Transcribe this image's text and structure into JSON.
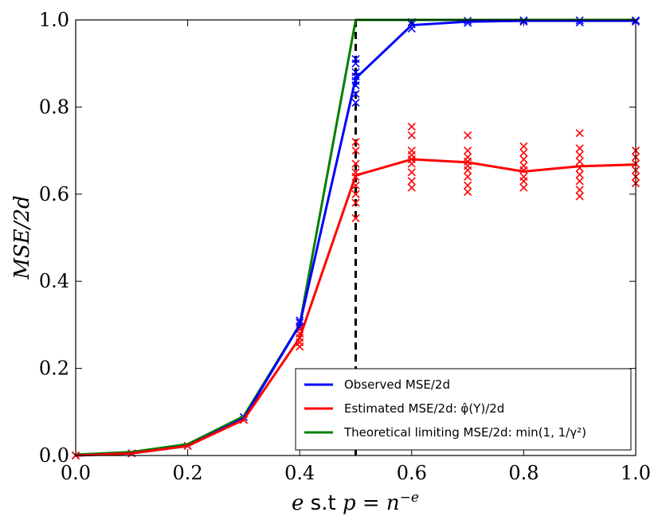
{
  "chart_data": {
    "type": "line",
    "xlabel": "e s.t p = n^{-e}",
    "ylabel": "MSE/2d",
    "xlim": [
      0.0,
      1.0
    ],
    "ylim": [
      0.0,
      1.0
    ],
    "xticks": [
      "0.0",
      "0.2",
      "0.4",
      "0.6",
      "0.8",
      "1.0"
    ],
    "yticks": [
      "0.0",
      "0.2",
      "0.4",
      "0.6",
      "0.8",
      "1.0"
    ],
    "vline": {
      "x": 0.5,
      "style": "dashed",
      "color": "#000000"
    },
    "legend_position": "bottom-right",
    "series": [
      {
        "name": "Observed MSE/2d",
        "legend_label": "Observed MSE/2d",
        "color": "#0000ff",
        "x": [
          0.0,
          0.1,
          0.2,
          0.3,
          0.4,
          0.5,
          0.6,
          0.7,
          0.8,
          0.9,
          1.0
        ],
        "y": [
          0.0,
          0.005,
          0.022,
          0.085,
          0.3,
          0.866,
          0.988,
          0.996,
          0.998,
          0.998,
          0.998
        ],
        "scatter": [
          [
            0.0,
            0.0
          ],
          [
            0.1,
            0.005
          ],
          [
            0.2,
            0.022
          ],
          [
            0.3,
            0.082
          ],
          [
            0.3,
            0.088
          ],
          [
            0.4,
            0.295
          ],
          [
            0.4,
            0.305
          ],
          [
            0.4,
            0.31
          ],
          [
            0.5,
            0.81
          ],
          [
            0.5,
            0.83
          ],
          [
            0.5,
            0.85
          ],
          [
            0.5,
            0.86
          ],
          [
            0.5,
            0.87
          ],
          [
            0.5,
            0.88
          ],
          [
            0.5,
            0.9
          ],
          [
            0.5,
            0.91
          ],
          [
            0.6,
            0.98
          ],
          [
            0.6,
            0.99
          ],
          [
            0.6,
            0.995
          ],
          [
            0.7,
            0.993
          ],
          [
            0.7,
            0.998
          ],
          [
            0.8,
            0.996
          ],
          [
            0.8,
            0.999
          ],
          [
            0.9,
            0.994
          ],
          [
            0.9,
            0.999
          ],
          [
            1.0,
            0.996
          ],
          [
            1.0,
            0.999
          ]
        ]
      },
      {
        "name": "Estimated MSE/2d: phi(Y)/2d",
        "legend_label": "Estimated MSE/2d: φ̂(Y)/2d",
        "color": "#ff0000",
        "x": [
          0.0,
          0.1,
          0.2,
          0.3,
          0.4,
          0.5,
          0.6,
          0.7,
          0.8,
          0.9,
          1.0
        ],
        "y": [
          0.0,
          0.005,
          0.022,
          0.082,
          0.27,
          0.643,
          0.68,
          0.673,
          0.652,
          0.664,
          0.668
        ],
        "scatter": [
          [
            0.0,
            0.0
          ],
          [
            0.1,
            0.005
          ],
          [
            0.2,
            0.022
          ],
          [
            0.3,
            0.082
          ],
          [
            0.4,
            0.25
          ],
          [
            0.4,
            0.26
          ],
          [
            0.4,
            0.27
          ],
          [
            0.4,
            0.28
          ],
          [
            0.4,
            0.29
          ],
          [
            0.5,
            0.545
          ],
          [
            0.5,
            0.58
          ],
          [
            0.5,
            0.6
          ],
          [
            0.5,
            0.62
          ],
          [
            0.5,
            0.64
          ],
          [
            0.5,
            0.65
          ],
          [
            0.5,
            0.67
          ],
          [
            0.5,
            0.7
          ],
          [
            0.5,
            0.72
          ],
          [
            0.6,
            0.615
          ],
          [
            0.6,
            0.63
          ],
          [
            0.6,
            0.65
          ],
          [
            0.6,
            0.67
          ],
          [
            0.6,
            0.68
          ],
          [
            0.6,
            0.69
          ],
          [
            0.6,
            0.7
          ],
          [
            0.6,
            0.735
          ],
          [
            0.6,
            0.755
          ],
          [
            0.7,
            0.605
          ],
          [
            0.7,
            0.62
          ],
          [
            0.7,
            0.64
          ],
          [
            0.7,
            0.655
          ],
          [
            0.7,
            0.665
          ],
          [
            0.7,
            0.675
          ],
          [
            0.7,
            0.685
          ],
          [
            0.7,
            0.7
          ],
          [
            0.7,
            0.735
          ],
          [
            0.8,
            0.615
          ],
          [
            0.8,
            0.63
          ],
          [
            0.8,
            0.64
          ],
          [
            0.8,
            0.655
          ],
          [
            0.8,
            0.665
          ],
          [
            0.8,
            0.68
          ],
          [
            0.8,
            0.695
          ],
          [
            0.8,
            0.71
          ],
          [
            0.9,
            0.595
          ],
          [
            0.9,
            0.61
          ],
          [
            0.9,
            0.63
          ],
          [
            0.9,
            0.645
          ],
          [
            0.9,
            0.66
          ],
          [
            0.9,
            0.675
          ],
          [
            0.9,
            0.69
          ],
          [
            0.9,
            0.705
          ],
          [
            0.9,
            0.74
          ],
          [
            1.0,
            0.625
          ],
          [
            1.0,
            0.64
          ],
          [
            1.0,
            0.655
          ],
          [
            1.0,
            0.67
          ],
          [
            1.0,
            0.685
          ],
          [
            1.0,
            0.7
          ]
        ]
      },
      {
        "name": "Theoretical limiting MSE/2d: min(1, 1/gamma^2)",
        "legend_label": "Theoretical limiting MSE/2d: min(1, 1/γ²)",
        "color": "#008000",
        "x": [
          0.0,
          0.1,
          0.2,
          0.3,
          0.4,
          0.5,
          0.6,
          0.7,
          0.8,
          0.9,
          1.0
        ],
        "y": [
          0.002,
          0.008,
          0.026,
          0.09,
          0.3,
          1.0,
          1.0,
          1.0,
          1.0,
          1.0,
          1.0
        ],
        "scatter": []
      }
    ]
  }
}
